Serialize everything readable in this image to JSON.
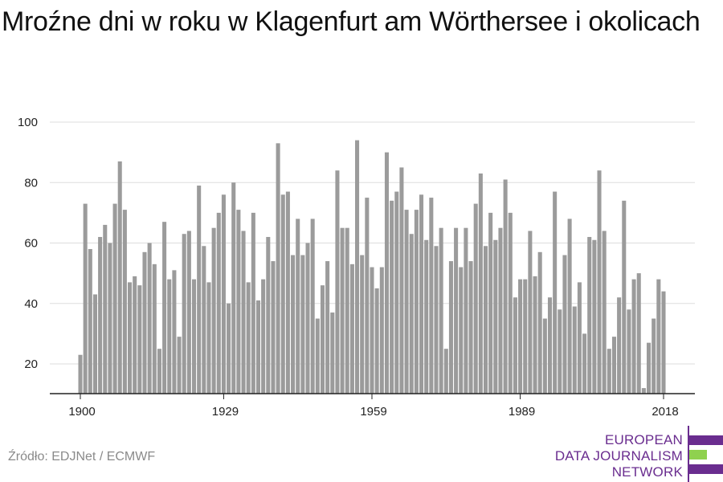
{
  "title": "Mroźne dni w roku w Klagenfurt am Wörthersee i okolicach",
  "source": "Źródło: EDJNet / ECMWF",
  "logo": {
    "lines": [
      "EUROPEAN",
      "DATA JOURNALISM",
      "NETWORK"
    ],
    "colors": {
      "primary": "#6a2d8f",
      "accent": "#8fd14f"
    }
  },
  "chart_data": {
    "type": "bar",
    "title": "Mroźne dni w roku w Klagenfurt am Wörthersee i okolicach",
    "xlabel": "",
    "ylabel": "",
    "bar_color": "#9b9b9b",
    "grid": true,
    "xlim": [
      1900,
      2018
    ],
    "ylim": [
      10,
      100
    ],
    "x_ticks": [
      1900,
      1929,
      1959,
      1989,
      2018
    ],
    "y_ticks": [
      20,
      40,
      60,
      80,
      100
    ],
    "categories": [
      1900,
      1901,
      1902,
      1903,
      1904,
      1905,
      1906,
      1907,
      1908,
      1909,
      1910,
      1911,
      1912,
      1913,
      1914,
      1915,
      1916,
      1917,
      1918,
      1919,
      1920,
      1921,
      1922,
      1923,
      1924,
      1925,
      1926,
      1927,
      1928,
      1929,
      1930,
      1931,
      1932,
      1933,
      1934,
      1935,
      1936,
      1937,
      1938,
      1939,
      1940,
      1941,
      1942,
      1943,
      1944,
      1945,
      1946,
      1947,
      1948,
      1949,
      1950,
      1951,
      1952,
      1953,
      1954,
      1955,
      1956,
      1957,
      1958,
      1959,
      1960,
      1961,
      1962,
      1963,
      1964,
      1965,
      1966,
      1967,
      1968,
      1969,
      1970,
      1971,
      1972,
      1973,
      1974,
      1975,
      1976,
      1977,
      1978,
      1979,
      1980,
      1981,
      1982,
      1983,
      1984,
      1985,
      1986,
      1987,
      1988,
      1989,
      1990,
      1991,
      1992,
      1993,
      1994,
      1995,
      1996,
      1997,
      1998,
      1999,
      2000,
      2001,
      2002,
      2003,
      2004,
      2005,
      2006,
      2007,
      2008,
      2009,
      2010,
      2011,
      2012,
      2013,
      2014,
      2015,
      2016,
      2017,
      2018
    ],
    "values": [
      23,
      73,
      58,
      43,
      62,
      66,
      60,
      73,
      87,
      71,
      47,
      49,
      46,
      57,
      60,
      53,
      25,
      67,
      48,
      51,
      29,
      63,
      64,
      48,
      79,
      59,
      47,
      65,
      70,
      76,
      40,
      80,
      71,
      64,
      47,
      70,
      41,
      48,
      62,
      54,
      93,
      76,
      77,
      56,
      68,
      56,
      60,
      68,
      35,
      46,
      54,
      37,
      84,
      65,
      65,
      53,
      94,
      56,
      75,
      52,
      45,
      52,
      90,
      74,
      77,
      85,
      71,
      63,
      71,
      76,
      61,
      75,
      59,
      65,
      25,
      54,
      65,
      52,
      65,
      54,
      73,
      83,
      59,
      70,
      61,
      65,
      81,
      70,
      42,
      48,
      48,
      64,
      49,
      57,
      35,
      42,
      77,
      38,
      56,
      68,
      39,
      47,
      30,
      62,
      61,
      84,
      64,
      25,
      29,
      42,
      74,
      38,
      48,
      50,
      12,
      27,
      35,
      48,
      44
    ]
  }
}
